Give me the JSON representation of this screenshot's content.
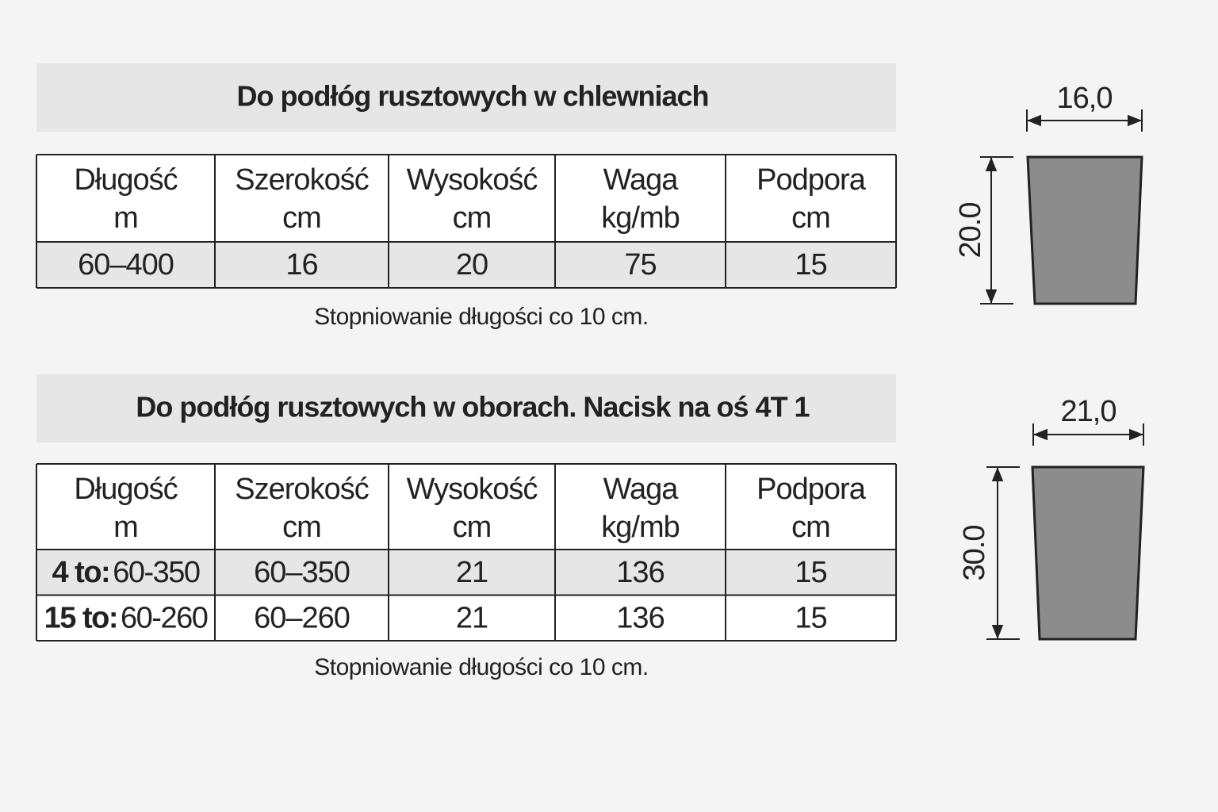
{
  "sections": [
    {
      "title": "Do podłóg rusztowych w chlewniach",
      "table": {
        "header": [
          [
            "Długość",
            "m"
          ],
          [
            "Szerokość",
            "cm"
          ],
          [
            "Wysokość",
            "cm"
          ],
          [
            "Waga",
            "kg/mb"
          ],
          [
            "Podpora",
            "cm"
          ]
        ],
        "rows": [
          [
            "60–400",
            "16",
            "20",
            "75",
            "15"
          ]
        ]
      },
      "note": "Stopniowanie długości co 10 cm.",
      "diagram": {
        "width_label": "16,0",
        "height_label": "20.0"
      }
    },
    {
      "title": "Do podłóg rusztowych w oborach. Nacisk na oś 4T 1",
      "table": {
        "header": [
          [
            "Długość",
            "m"
          ],
          [
            "Szerokość",
            "cm"
          ],
          [
            "Wysokość",
            "cm"
          ],
          [
            "Waga",
            "kg/mb"
          ],
          [
            "Podpora",
            "cm"
          ]
        ],
        "rows": [
          [
            {
              "bold": "4 to:",
              "text": "60-350"
            },
            "60–350",
            "21",
            "136",
            "15"
          ],
          [
            {
              "bold": "15 to:",
              "text": "60-260"
            },
            "60–260",
            "21",
            "136",
            "15"
          ]
        ]
      },
      "note": "Stopniowanie długości co 10 cm.",
      "diagram": {
        "width_label": "21,0",
        "height_label": "30.0"
      }
    }
  ]
}
